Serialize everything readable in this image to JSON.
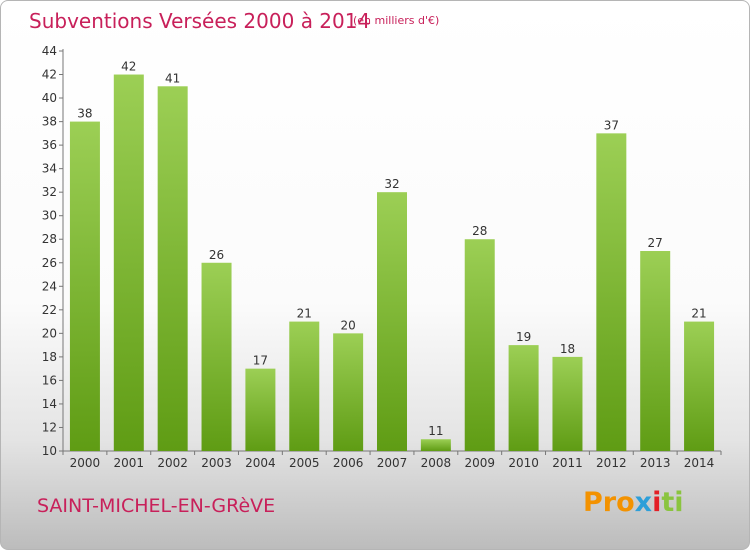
{
  "header": {
    "title": "Subventions Versées 2000 à 2014",
    "subtitle": "(en milliers d'€)"
  },
  "footer": {
    "commune": "SAINT-MICHEL-EN-GRèVE",
    "logo": {
      "part1": "Pro",
      "part2": "x",
      "part3": "i",
      "part4": "ti"
    }
  },
  "colors": {
    "accent": "#c8205a",
    "bar_top": "#9ccf55",
    "bar_bottom": "#5f9c14"
  },
  "chart_data": {
    "type": "bar",
    "title": "Subventions Versées 2000 à 2014",
    "subtitle": "(en milliers d'€)",
    "categories": [
      "2000",
      "2001",
      "2002",
      "2003",
      "2004",
      "2005",
      "2006",
      "2007",
      "2008",
      "2009",
      "2010",
      "2011",
      "2012",
      "2013",
      "2014"
    ],
    "values": [
      38,
      42,
      41,
      26,
      17,
      21,
      20,
      32,
      11,
      28,
      19,
      18,
      37,
      27,
      21
    ],
    "ylim": [
      10,
      44
    ],
    "yticks": [
      10,
      12,
      14,
      16,
      18,
      20,
      22,
      24,
      26,
      28,
      30,
      32,
      34,
      36,
      38,
      40,
      42,
      44
    ],
    "grid": false,
    "legend": "none"
  }
}
